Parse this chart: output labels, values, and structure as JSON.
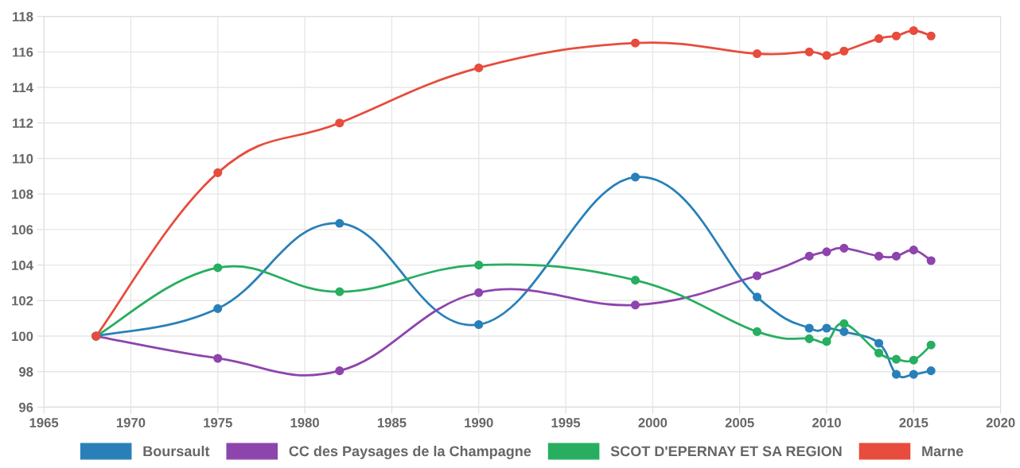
{
  "chart_data": {
    "type": "line",
    "x": [
      1968,
      1975,
      1982,
      1990,
      1999,
      2006,
      2009,
      2010,
      2011,
      2013,
      2014,
      2015,
      2016
    ],
    "series": [
      {
        "name": "Boursault",
        "color": "#2980b9",
        "values": [
          100,
          101.55,
          106.35,
          100.65,
          108.95,
          102.2,
          100.45,
          100.45,
          100.25,
          99.6,
          97.85,
          97.85,
          98.05
        ]
      },
      {
        "name": "CC des Paysages de la Champagne",
        "color": "#8e44ad",
        "values": [
          100,
          98.75,
          98.05,
          102.45,
          101.75,
          103.4,
          104.5,
          104.75,
          104.95,
          104.5,
          104.5,
          104.85,
          104.25
        ]
      },
      {
        "name": "SCOT D'EPERNAY ET SA REGION",
        "color": "#27ae60",
        "values": [
          100,
          103.85,
          102.5,
          104.0,
          103.15,
          100.25,
          99.85,
          99.7,
          100.7,
          99.05,
          98.7,
          98.65,
          99.5
        ]
      },
      {
        "name": "Marne",
        "color": "#e74c3c",
        "values": [
          100,
          109.2,
          112.0,
          115.1,
          116.5,
          115.9,
          116.0,
          115.8,
          116.05,
          116.75,
          116.9,
          117.2,
          116.9
        ]
      }
    ],
    "xlim": [
      1965,
      2020
    ],
    "xticks": [
      1965,
      1970,
      1975,
      1980,
      1985,
      1990,
      1995,
      2000,
      2005,
      2010,
      2015,
      2020
    ],
    "ylim": [
      96,
      118
    ],
    "yticks": [
      96,
      98,
      100,
      102,
      104,
      106,
      108,
      110,
      112,
      114,
      116,
      118
    ],
    "grid": true,
    "legend": "bottom",
    "marker": "circle",
    "line_style": "solid"
  }
}
